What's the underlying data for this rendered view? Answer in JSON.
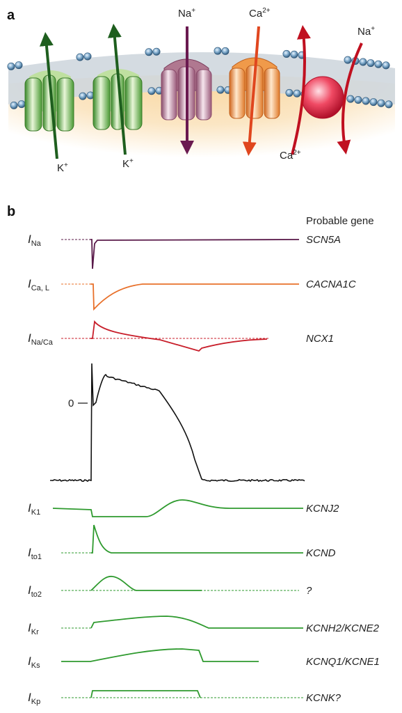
{
  "panel_a": {
    "label": "a",
    "ions": {
      "k_left": {
        "base": "K",
        "sup": "+"
      },
      "k_right": {
        "base": "K",
        "sup": "+"
      },
      "na_channel": {
        "base": "Na",
        "sup": "+"
      },
      "ca_channel": {
        "base": "Ca",
        "sup": "2+"
      },
      "na_exchanger": {
        "base": "Na",
        "sup": "+"
      },
      "ca_exchanger": {
        "base": "Ca",
        "sup": "2+"
      }
    },
    "colors": {
      "k_channel": "#5aa83a",
      "na_channel": "#b07890",
      "ca_channel": "#e8883a",
      "exchanger": "#e0203a",
      "k_arrow": "#1e5e1e",
      "na_arrow": "#6a1a50",
      "ca_arrow": "#e0461e",
      "ex_arrow": "#c01020"
    }
  },
  "panel_b": {
    "label": "b",
    "header": "Probable gene",
    "zero_label": "0",
    "traces": [
      {
        "id": "ina",
        "cur_base": "I",
        "cur_sub": "Na",
        "gene": "SCN5A",
        "color": "#5a1a4a"
      },
      {
        "id": "ical",
        "cur_base": "I",
        "cur_sub": "Ca, L",
        "gene": "CACNA1C",
        "color": "#e8702a"
      },
      {
        "id": "inaca",
        "cur_base": "I",
        "cur_sub": "Na/Ca",
        "gene": "NCX1",
        "color": "#c81e2a"
      },
      {
        "id": "ik1",
        "cur_base": "I",
        "cur_sub": "K1",
        "gene": "KCNJ2",
        "color": "#2e9a2e"
      },
      {
        "id": "ito1",
        "cur_base": "I",
        "cur_sub": "to1",
        "gene": "KCND",
        "color": "#2e9a2e"
      },
      {
        "id": "ito2",
        "cur_base": "I",
        "cur_sub": "to2",
        "gene": "?",
        "color": "#2e9a2e"
      },
      {
        "id": "ikr",
        "cur_base": "I",
        "cur_sub": "Kr",
        "gene": "KCNH2/KCNE2",
        "color": "#2e9a2e"
      },
      {
        "id": "iks",
        "cur_base": "I",
        "cur_sub": "Ks",
        "gene": "KCNQ1/KCNE1",
        "color": "#2e9a2e"
      },
      {
        "id": "ikp",
        "cur_base": "I",
        "cur_sub": "Kp",
        "gene": "KCNK?",
        "color": "#2e9a2e"
      }
    ]
  }
}
